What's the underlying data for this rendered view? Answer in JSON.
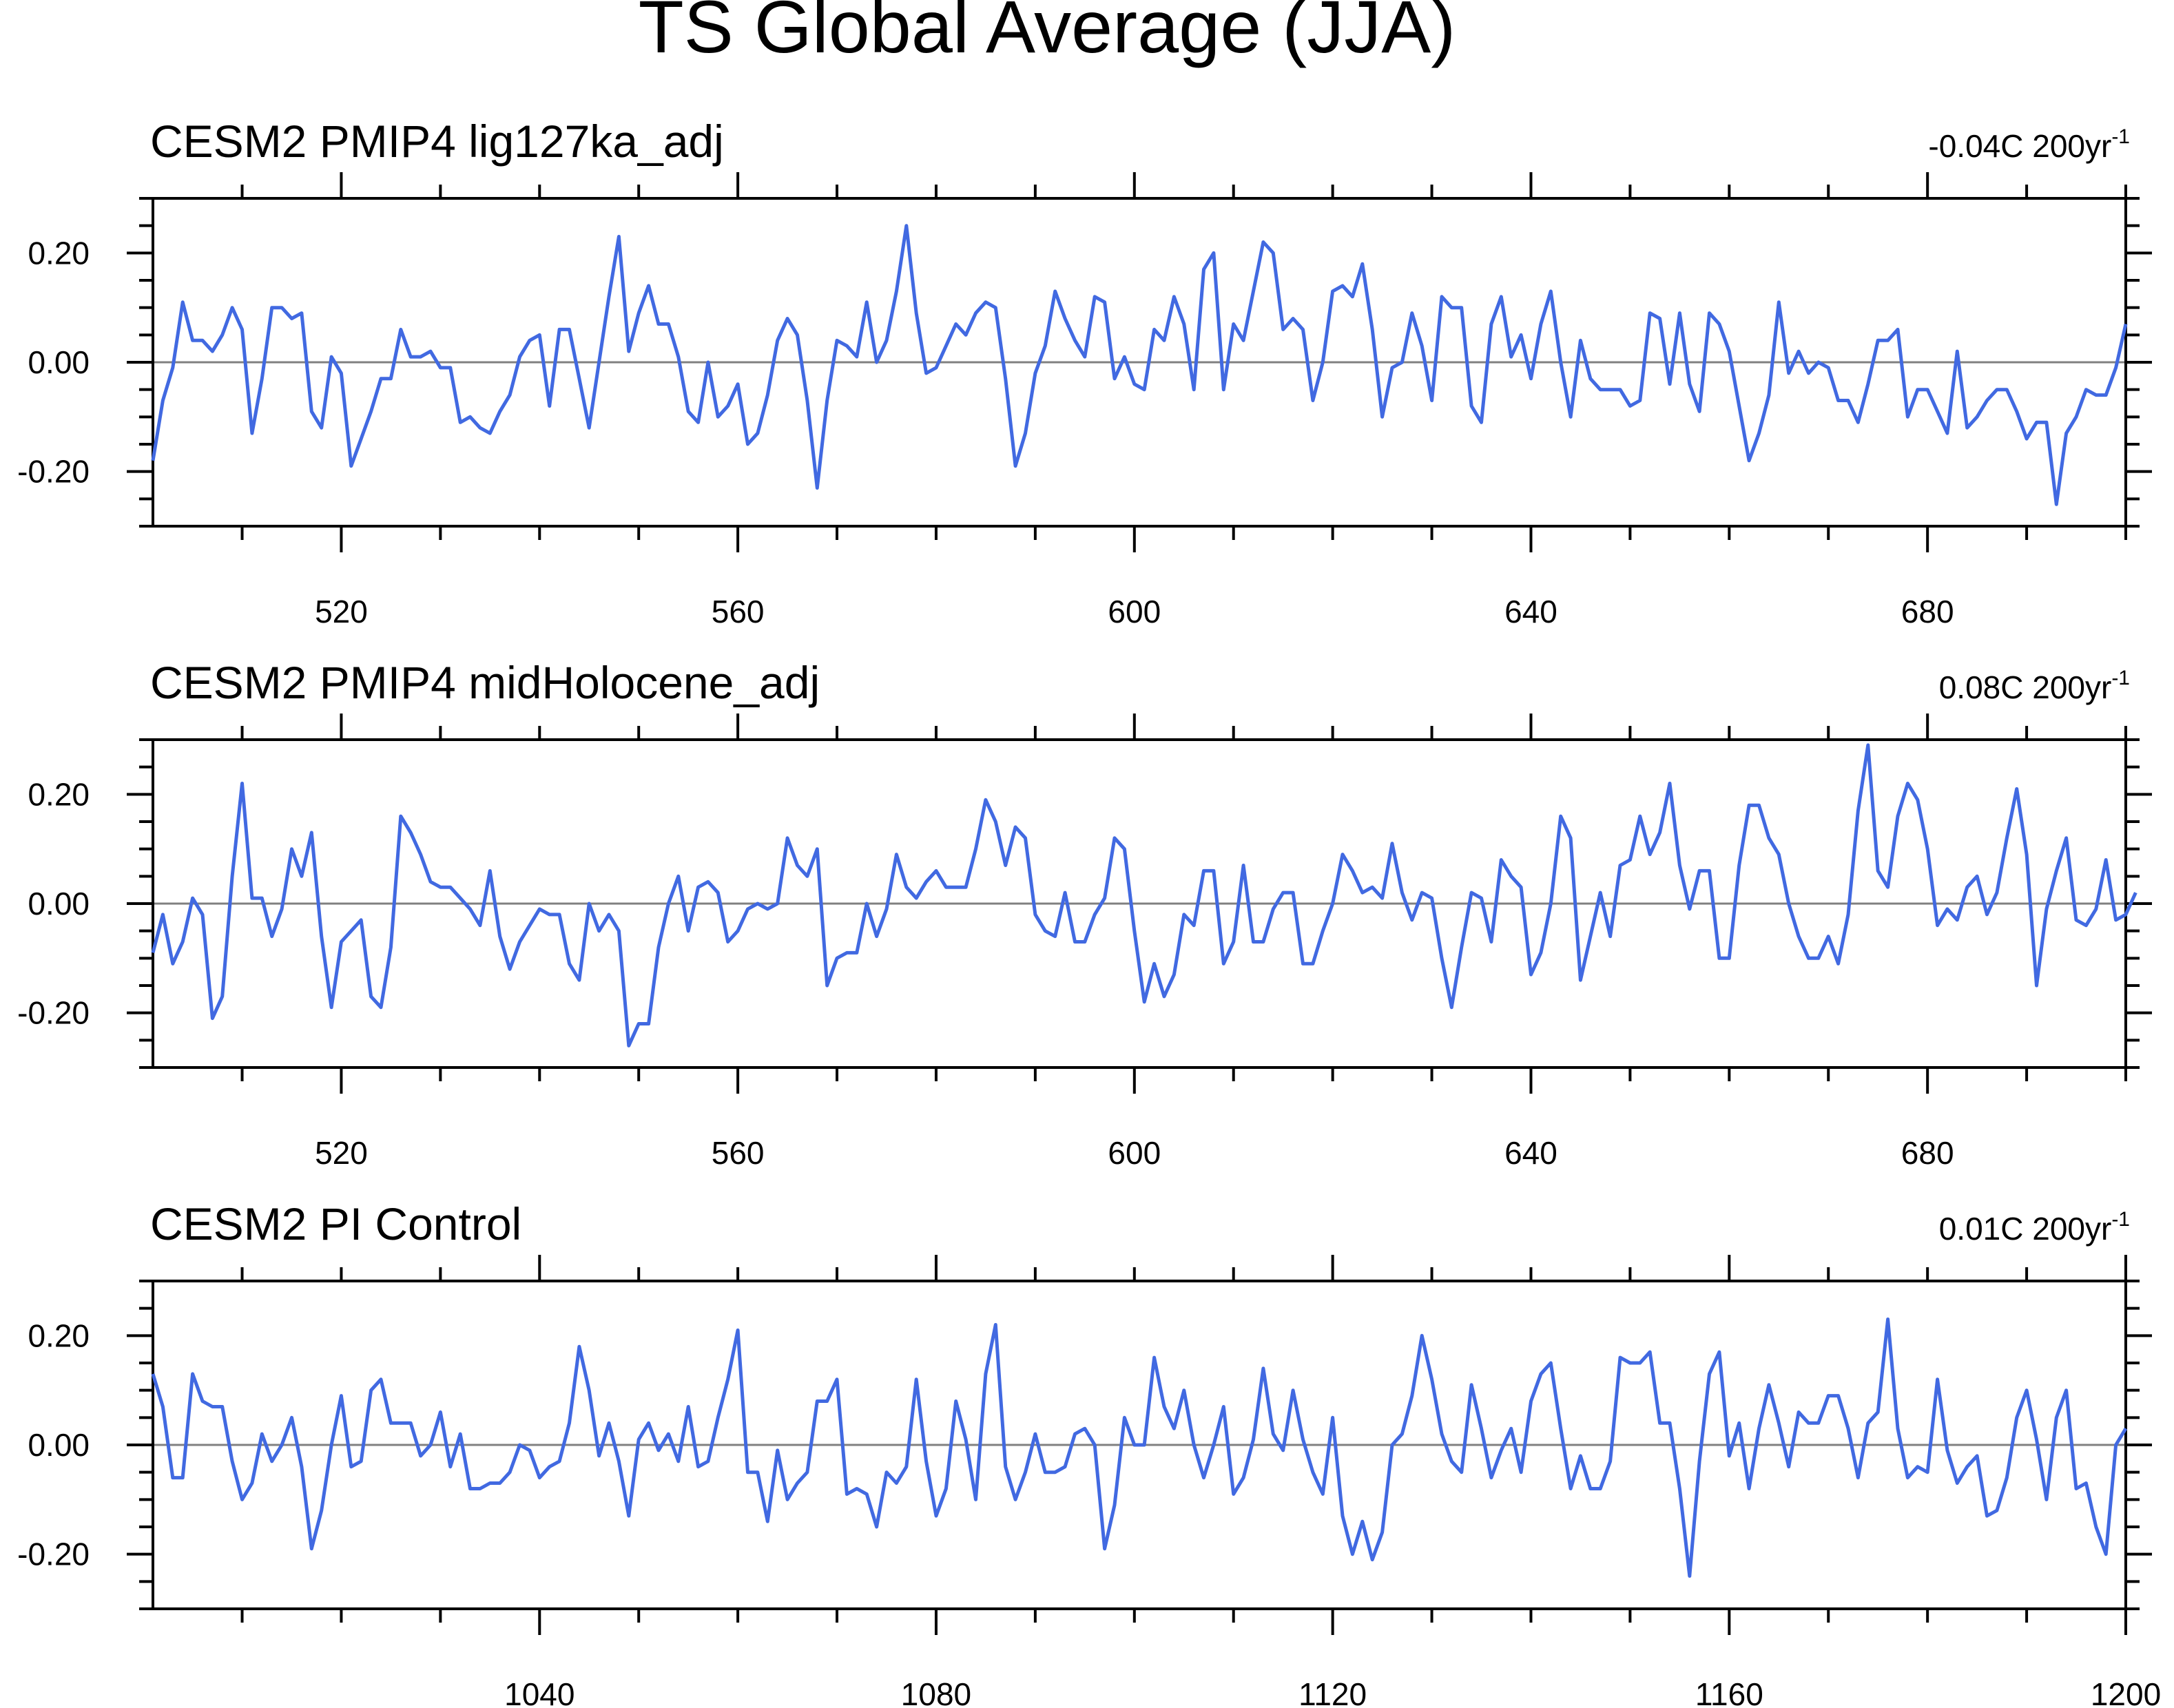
{
  "figure": {
    "title": "TS Global Average (JJA)"
  },
  "colors": {
    "series": "#4169e1",
    "zero_line": "#808080",
    "frame": "#000000"
  },
  "chart_data": [
    {
      "type": "line",
      "title": "CESM2 PMIP4 lig127ka_adj",
      "trend_label": "-0.04C 200yr",
      "trend_sup": "-1",
      "xlim": [
        501,
        700
      ],
      "ylim": [
        -0.3,
        0.3
      ],
      "x_ticks": [
        520,
        560,
        600,
        640,
        680
      ],
      "y_ticks": [
        "0.20",
        "0.00",
        "-0.20"
      ],
      "x_start": 501,
      "values": [
        -0.18,
        -0.07,
        -0.01,
        0.11,
        0.04,
        0.04,
        0.02,
        0.05,
        0.1,
        0.06,
        -0.13,
        -0.03,
        0.1,
        0.1,
        0.08,
        0.09,
        -0.09,
        -0.12,
        0.01,
        -0.02,
        -0.19,
        -0.14,
        -0.09,
        -0.03,
        -0.03,
        0.06,
        0.01,
        0.01,
        0.02,
        -0.01,
        -0.01,
        -0.11,
        -0.1,
        -0.12,
        -0.13,
        -0.09,
        -0.06,
        0.01,
        0.04,
        0.05,
        -0.08,
        0.06,
        0.06,
        -0.03,
        -0.12,
        0.0,
        0.12,
        0.23,
        0.02,
        0.09,
        0.14,
        0.07,
        0.07,
        0.01,
        -0.09,
        -0.11,
        0.0,
        -0.1,
        -0.08,
        -0.04,
        -0.15,
        -0.13,
        -0.06,
        0.04,
        0.08,
        0.05,
        -0.07,
        -0.23,
        -0.07,
        0.04,
        0.03,
        0.01,
        0.11,
        0.0,
        0.04,
        0.13,
        0.25,
        0.09,
        -0.02,
        -0.01,
        0.03,
        0.07,
        0.05,
        0.09,
        0.11,
        0.1,
        -0.03,
        -0.19,
        -0.13,
        -0.02,
        0.03,
        0.13,
        0.08,
        0.04,
        0.01,
        0.12,
        0.11,
        -0.03,
        0.01,
        -0.04,
        -0.05,
        0.06,
        0.04,
        0.12,
        0.07,
        -0.05,
        0.17,
        0.2,
        -0.05,
        0.07,
        0.04,
        0.13,
        0.22,
        0.2,
        0.06,
        0.08,
        0.06,
        -0.07,
        0.0,
        0.13,
        0.14,
        0.12,
        0.18,
        0.06,
        -0.1,
        -0.01,
        0.0,
        0.09,
        0.03,
        -0.07,
        0.12,
        0.1,
        0.1,
        -0.08,
        -0.11,
        0.07,
        0.12,
        0.01,
        0.05,
        -0.03,
        0.07,
        0.13,
        0.0,
        -0.1,
        0.04,
        -0.03,
        -0.05,
        -0.05,
        -0.05,
        -0.08,
        -0.07,
        0.09,
        0.08,
        -0.04,
        0.09,
        -0.04,
        -0.09,
        0.09,
        0.07,
        0.02,
        -0.08,
        -0.18,
        -0.13,
        -0.06,
        0.11,
        -0.02,
        0.02,
        -0.02,
        0.0,
        -0.01,
        -0.07,
        -0.07,
        -0.11,
        -0.04,
        0.04,
        0.04,
        0.06,
        -0.1,
        -0.05,
        -0.05,
        -0.09,
        -0.13,
        0.02,
        -0.12,
        -0.1,
        -0.07,
        -0.05,
        -0.05,
        -0.09,
        -0.14,
        -0.11,
        -0.11,
        -0.26,
        -0.13,
        -0.1,
        -0.05,
        -0.06,
        -0.06,
        -0.01,
        0.07
      ]
    },
    {
      "type": "line",
      "title": "CESM2 PMIP4 midHolocene_adj",
      "trend_label": "0.08C 200yr",
      "trend_sup": "-1",
      "xlim": [
        501,
        700
      ],
      "ylim": [
        -0.3,
        0.3
      ],
      "x_ticks": [
        520,
        560,
        600,
        640,
        680
      ],
      "y_ticks": [
        "0.20",
        "0.00",
        "-0.20"
      ],
      "x_start": 501,
      "values": [
        -0.09,
        -0.02,
        -0.11,
        -0.07,
        0.01,
        -0.02,
        -0.21,
        -0.17,
        0.05,
        0.22,
        0.01,
        0.01,
        -0.06,
        -0.01,
        0.1,
        0.05,
        0.13,
        -0.06,
        -0.19,
        -0.07,
        -0.05,
        -0.03,
        -0.17,
        -0.19,
        -0.08,
        0.16,
        0.13,
        0.09,
        0.04,
        0.03,
        0.03,
        0.01,
        -0.01,
        -0.04,
        0.06,
        -0.06,
        -0.12,
        -0.07,
        -0.04,
        -0.01,
        -0.02,
        -0.02,
        -0.11,
        -0.14,
        0.0,
        -0.05,
        -0.02,
        -0.05,
        -0.26,
        -0.22,
        -0.22,
        -0.08,
        0.0,
        0.05,
        -0.05,
        0.03,
        0.04,
        0.02,
        -0.07,
        -0.05,
        -0.01,
        0.0,
        -0.01,
        0.0,
        0.12,
        0.07,
        0.05,
        0.1,
        -0.15,
        -0.1,
        -0.09,
        -0.09,
        0.0,
        -0.06,
        -0.01,
        0.09,
        0.03,
        0.01,
        0.04,
        0.06,
        0.03,
        0.03,
        0.03,
        0.1,
        0.19,
        0.15,
        0.07,
        0.14,
        0.12,
        -0.02,
        -0.05,
        -0.06,
        0.02,
        -0.07,
        -0.07,
        -0.02,
        0.01,
        0.12,
        0.1,
        -0.05,
        -0.18,
        -0.11,
        -0.17,
        -0.13,
        -0.02,
        -0.04,
        0.06,
        0.06,
        -0.11,
        -0.07,
        0.07,
        -0.07,
        -0.07,
        -0.01,
        0.02,
        0.02,
        -0.11,
        -0.11,
        -0.05,
        0.0,
        0.09,
        0.06,
        0.02,
        0.03,
        0.01,
        0.11,
        0.02,
        -0.03,
        0.02,
        0.01,
        -0.1,
        -0.19,
        -0.08,
        0.02,
        0.01,
        -0.07,
        0.08,
        0.05,
        0.03,
        -0.13,
        -0.09,
        0.0,
        0.16,
        0.12,
        -0.14,
        -0.06,
        0.02,
        -0.06,
        0.07,
        0.08,
        0.16,
        0.09,
        0.13,
        0.22,
        0.07,
        -0.01,
        0.06,
        0.06,
        -0.1,
        -0.1,
        0.07,
        0.18,
        0.18,
        0.12,
        0.09,
        0.0,
        -0.06,
        -0.1,
        -0.1,
        -0.06,
        -0.11,
        -0.02,
        0.17,
        0.29,
        0.06,
        0.03,
        0.16,
        0.22,
        0.19,
        0.1,
        -0.04,
        -0.01,
        -0.03,
        0.03,
        0.05,
        -0.02,
        0.02,
        0.12,
        0.21,
        0.09,
        -0.15,
        -0.01,
        0.06,
        0.12,
        -0.03,
        -0.04,
        -0.01,
        0.08,
        -0.03,
        -0.02,
        0.02
      ]
    },
    {
      "type": "line",
      "title": "CESM2 PI Control",
      "trend_label": "0.01C 200yr",
      "trend_sup": "-1",
      "xlim": [
        1001,
        1200
      ],
      "ylim": [
        -0.3,
        0.3
      ],
      "x_ticks": [
        1040,
        1080,
        1120,
        1160,
        1200
      ],
      "y_ticks": [
        "0.20",
        "0.00",
        "-0.20"
      ],
      "x_start": 1001,
      "values": [
        0.13,
        0.07,
        -0.06,
        -0.06,
        0.13,
        0.08,
        0.07,
        0.07,
        -0.03,
        -0.1,
        -0.07,
        0.02,
        -0.03,
        0.0,
        0.05,
        -0.04,
        -0.19,
        -0.12,
        0.0,
        0.09,
        -0.04,
        -0.03,
        0.1,
        0.12,
        0.04,
        0.04,
        0.04,
        -0.02,
        0.0,
        0.06,
        -0.04,
        0.02,
        -0.08,
        -0.08,
        -0.07,
        -0.07,
        -0.05,
        0.0,
        -0.01,
        -0.06,
        -0.04,
        -0.03,
        0.04,
        0.18,
        0.1,
        -0.02,
        0.04,
        -0.03,
        -0.13,
        0.01,
        0.04,
        -0.01,
        0.02,
        -0.03,
        0.07,
        -0.04,
        -0.03,
        0.05,
        0.12,
        0.21,
        -0.05,
        -0.05,
        -0.14,
        -0.01,
        -0.1,
        -0.07,
        -0.05,
        0.08,
        0.08,
        0.12,
        -0.09,
        -0.08,
        -0.09,
        -0.15,
        -0.05,
        -0.07,
        -0.04,
        0.12,
        -0.03,
        -0.13,
        -0.08,
        0.08,
        0.01,
        -0.1,
        0.13,
        0.22,
        -0.04,
        -0.1,
        -0.05,
        0.02,
        -0.05,
        -0.05,
        -0.04,
        0.02,
        0.03,
        0.0,
        -0.19,
        -0.11,
        0.05,
        0.0,
        0.0,
        0.16,
        0.07,
        0.03,
        0.1,
        0.0,
        -0.06,
        0.0,
        0.07,
        -0.09,
        -0.06,
        0.01,
        0.14,
        0.02,
        -0.01,
        0.1,
        0.01,
        -0.05,
        -0.09,
        0.05,
        -0.13,
        -0.2,
        -0.14,
        -0.21,
        -0.16,
        0.0,
        0.02,
        0.09,
        0.2,
        0.12,
        0.02,
        -0.03,
        -0.05,
        0.11,
        0.03,
        -0.06,
        -0.01,
        0.03,
        -0.05,
        0.08,
        0.13,
        0.15,
        0.03,
        -0.08,
        -0.02,
        -0.08,
        -0.08,
        -0.03,
        0.16,
        0.15,
        0.15,
        0.17,
        0.04,
        0.04,
        -0.08,
        -0.24,
        -0.03,
        0.13,
        0.17,
        -0.02,
        0.04,
        -0.08,
        0.03,
        0.11,
        0.04,
        -0.04,
        0.06,
        0.04,
        0.04,
        0.09,
        0.09,
        0.03,
        -0.06,
        0.04,
        0.06,
        0.23,
        0.03,
        -0.06,
        -0.04,
        -0.05,
        0.12,
        -0.01,
        -0.07,
        -0.04,
        -0.02,
        -0.13,
        -0.12,
        -0.06,
        0.05,
        0.1,
        0.01,
        -0.1,
        0.05,
        0.1,
        -0.08,
        -0.07,
        -0.15,
        -0.2,
        0.0,
        0.03
      ]
    }
  ]
}
